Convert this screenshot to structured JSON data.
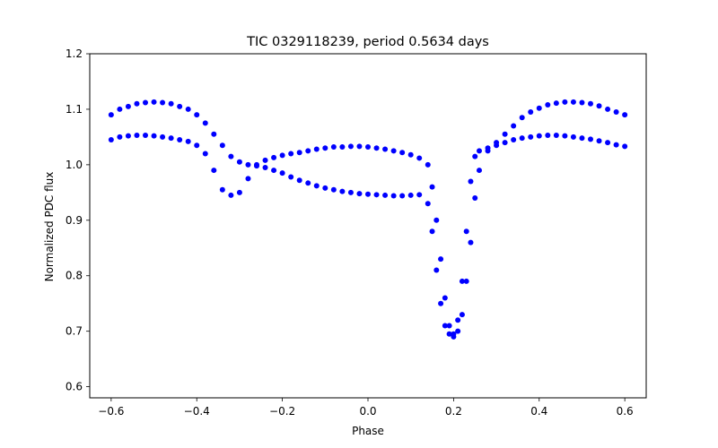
{
  "chart_data": {
    "type": "scatter",
    "title": "TIC 0329118239, period 0.5634 days",
    "xlabel": "Phase",
    "ylabel": "Normalized PDC flux",
    "xlim": [
      -0.65,
      0.65
    ],
    "ylim": [
      0.58,
      1.2
    ],
    "xticks": [
      -0.6,
      -0.4,
      -0.2,
      0.0,
      0.2,
      0.4,
      0.6
    ],
    "xtick_labels": [
      "−0.6",
      "−0.4",
      "−0.2",
      "0.0",
      "0.2",
      "0.4",
      "0.6"
    ],
    "yticks": [
      0.6,
      0.7,
      0.8,
      0.9,
      1.0,
      1.1,
      1.2
    ],
    "ytick_labels": [
      "0.6",
      "0.7",
      "0.8",
      "0.9",
      "1.0",
      "1.1",
      "1.2"
    ],
    "grid": false,
    "marker_color": "#0000ff",
    "series": [
      {
        "x": [
          -0.6,
          -0.58,
          -0.56,
          -0.54,
          -0.52,
          -0.5,
          -0.48,
          -0.46,
          -0.44,
          -0.42,
          -0.4,
          -0.38,
          -0.36,
          -0.34,
          -0.32,
          -0.3,
          -0.28,
          -0.26,
          -0.24,
          -0.22,
          -0.2,
          -0.18,
          -0.16,
          -0.14,
          -0.12,
          -0.1,
          -0.08,
          -0.06,
          -0.04,
          -0.02,
          0.0,
          0.02,
          0.04,
          0.06,
          0.08,
          0.1,
          0.12,
          0.14,
          0.15,
          0.16,
          0.17,
          0.18,
          0.19,
          0.2,
          0.21,
          0.22,
          0.23,
          0.24,
          0.25,
          0.26,
          0.28,
          0.3,
          0.32,
          0.34,
          0.36,
          0.38,
          0.4,
          0.42,
          0.44,
          0.46,
          0.48,
          0.5,
          0.52,
          0.54,
          0.56,
          0.58,
          0.6
        ],
        "y": [
          1.045,
          1.05,
          1.052,
          1.053,
          1.053,
          1.052,
          1.05,
          1.048,
          1.045,
          1.042,
          1.035,
          1.02,
          0.99,
          0.955,
          0.945,
          0.95,
          0.975,
          0.998,
          1.008,
          1.013,
          1.017,
          1.02,
          1.022,
          1.025,
          1.028,
          1.03,
          1.032,
          1.032,
          1.033,
          1.033,
          1.032,
          1.03,
          1.028,
          1.025,
          1.022,
          1.018,
          1.012,
          1.0,
          0.96,
          0.9,
          0.83,
          0.76,
          0.71,
          0.695,
          0.72,
          0.79,
          0.88,
          0.97,
          1.015,
          1.025,
          1.03,
          1.035,
          1.04,
          1.045,
          1.048,
          1.05,
          1.052,
          1.053,
          1.053,
          1.052,
          1.05,
          1.048,
          1.046,
          1.043,
          1.04,
          1.036,
          1.033
        ]
      },
      {
        "x": [
          -0.6,
          -0.58,
          -0.56,
          -0.54,
          -0.52,
          -0.5,
          -0.48,
          -0.46,
          -0.44,
          -0.42,
          -0.4,
          -0.38,
          -0.36,
          -0.34,
          -0.32,
          -0.3,
          -0.28,
          -0.26,
          -0.24,
          -0.22,
          -0.2,
          -0.18,
          -0.16,
          -0.14,
          -0.12,
          -0.1,
          -0.08,
          -0.06,
          -0.04,
          -0.02,
          0.0,
          0.02,
          0.04,
          0.06,
          0.08,
          0.1,
          0.12,
          0.14,
          0.15,
          0.16,
          0.17,
          0.18,
          0.19,
          0.2,
          0.21,
          0.22,
          0.23,
          0.24,
          0.25,
          0.26,
          0.28,
          0.3,
          0.32,
          0.34,
          0.36,
          0.38,
          0.4,
          0.42,
          0.44,
          0.46,
          0.48,
          0.5,
          0.52,
          0.54,
          0.56,
          0.58,
          0.6
        ],
        "y": [
          1.09,
          1.1,
          1.105,
          1.11,
          1.112,
          1.113,
          1.112,
          1.11,
          1.105,
          1.1,
          1.09,
          1.075,
          1.055,
          1.035,
          1.015,
          1.005,
          1.0,
          1.0,
          0.995,
          0.99,
          0.985,
          0.978,
          0.972,
          0.967,
          0.962,
          0.958,
          0.955,
          0.952,
          0.95,
          0.948,
          0.947,
          0.946,
          0.945,
          0.944,
          0.944,
          0.945,
          0.946,
          0.93,
          0.88,
          0.81,
          0.75,
          0.71,
          0.695,
          0.69,
          0.7,
          0.73,
          0.79,
          0.86,
          0.94,
          0.99,
          1.025,
          1.04,
          1.055,
          1.07,
          1.085,
          1.095,
          1.102,
          1.108,
          1.111,
          1.113,
          1.113,
          1.112,
          1.11,
          1.106,
          1.1,
          1.095,
          1.09
        ]
      }
    ]
  }
}
